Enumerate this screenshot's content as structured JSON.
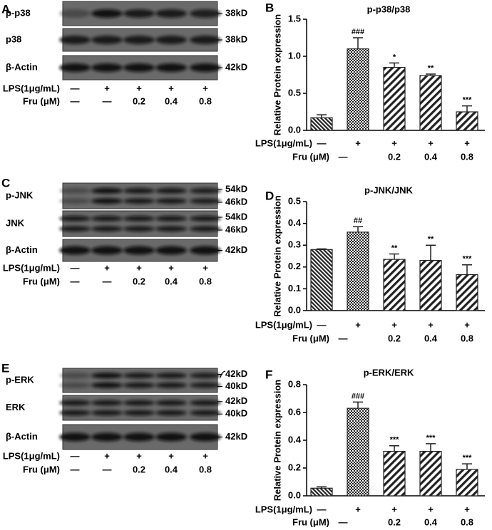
{
  "blots": [
    {
      "letter": "A",
      "rows": [
        {
          "label": "p-p38",
          "kd": [
            "38kD"
          ]
        },
        {
          "label": "p38",
          "kd": [
            "38kD"
          ]
        },
        {
          "label": "β-Actin",
          "kd": [
            "42kD"
          ]
        }
      ],
      "treatments": [
        {
          "label": "LPS(1μg/mL)",
          "values": [
            "—",
            "+",
            "+",
            "+",
            "+"
          ]
        },
        {
          "label": "Fru (μM)",
          "values": [
            "—",
            "—",
            "0.2",
            "0.4",
            "0.8"
          ]
        }
      ]
    },
    {
      "letter": "C",
      "rows": [
        {
          "label": "p-JNK",
          "kd": [
            "54kD",
            "46kD"
          ]
        },
        {
          "label": "JNK",
          "kd": [
            "54kD",
            "46kD"
          ]
        },
        {
          "label": "β-Actin",
          "kd": [
            "42kD"
          ]
        }
      ],
      "treatments": [
        {
          "label": "LPS(1μg/mL)",
          "values": [
            "—",
            "+",
            "+",
            "+",
            "+"
          ]
        },
        {
          "label": "Fru (μM)",
          "values": [
            "—",
            "—",
            "0.2",
            "0.4",
            "0.8"
          ]
        }
      ]
    },
    {
      "letter": "E",
      "rows": [
        {
          "label": "p-ERK",
          "kd": [
            "42kD",
            "40kD"
          ]
        },
        {
          "label": "ERK",
          "kd": [
            "42kD",
            "40kD"
          ]
        },
        {
          "label": "β-Actin",
          "kd": [
            "42kD"
          ]
        }
      ],
      "treatments": [
        {
          "label": "LPS(1μg/mL)",
          "values": [
            "—",
            "+",
            "+",
            "+",
            "+"
          ]
        },
        {
          "label": "Fru (μM)",
          "values": [
            "—",
            "—",
            "0.2",
            "0.4",
            "0.8"
          ]
        }
      ]
    }
  ],
  "chart_data": [
    {
      "type": "bar",
      "letter": "B",
      "title": "p-p38/p38",
      "y_label": "Relative Protein expression",
      "values": [
        0.17,
        1.1,
        0.85,
        0.74,
        0.25
      ],
      "errors": [
        0.04,
        0.15,
        0.06,
        0.02,
        0.08
      ],
      "annotations": [
        null,
        "###",
        "*",
        "**",
        "***"
      ],
      "color": "#222222",
      "ylim": [
        0,
        1.5
      ],
      "yticks": [
        {
          "value": 0,
          "label": "0.0"
        },
        0.5,
        {
          "value": 1,
          "label": "1.0"
        },
        1.5
      ],
      "treatments": [
        {
          "label": "LPS(1μg/mL)",
          "values": [
            "—",
            "+",
            "+",
            "+",
            "+"
          ]
        },
        {
          "label": "Fru (μM)",
          "values": [
            null,
            "—",
            "0.2",
            "0.4",
            "0.8"
          ]
        }
      ]
    },
    {
      "type": "bar",
      "letter": "D",
      "title": "p-JNK/JNK",
      "y_label": "Relative Protein expression",
      "values": [
        0.28,
        0.36,
        0.235,
        0.23,
        0.165
      ],
      "errors": [
        0.003,
        0.025,
        0.025,
        0.07,
        0.045
      ],
      "annotations": [
        null,
        "##",
        "**",
        "**",
        "***"
      ],
      "color": "#222222",
      "ylim": [
        0,
        0.5
      ],
      "yticks": [
        {
          "value": 0,
          "label": "0.0"
        },
        0.1,
        0.2,
        0.3,
        0.4,
        0.5
      ],
      "treatments": [
        {
          "label": "LPS(1μg/mL)",
          "values": [
            "—",
            "+",
            "+",
            "+",
            "+"
          ]
        },
        {
          "label": "Fru (μM)",
          "values": [
            null,
            "—",
            "0.2",
            "0.4",
            "0.8"
          ]
        }
      ]
    },
    {
      "type": "bar",
      "letter": "F",
      "title": "p-ERK/ERK",
      "y_label": "Relative Protein expression",
      "values": [
        0.055,
        0.63,
        0.32,
        0.32,
        0.19
      ],
      "errors": [
        0.01,
        0.045,
        0.04,
        0.055,
        0.04
      ],
      "annotations": [
        null,
        "###",
        "***",
        "***",
        "***"
      ],
      "color": "#222222",
      "ylim": [
        0,
        0.8
      ],
      "yticks": [
        {
          "value": 0,
          "label": "0.0"
        },
        0.2,
        0.4,
        0.6,
        0.8
      ],
      "treatments": [
        {
          "label": "LPS(1μg/mL)",
          "values": [
            "—",
            "+",
            "+",
            "+",
            "+"
          ]
        },
        {
          "label": "Fru (μM)",
          "values": [
            null,
            "—",
            "0.2",
            "0.4",
            "0.8"
          ]
        }
      ]
    }
  ]
}
